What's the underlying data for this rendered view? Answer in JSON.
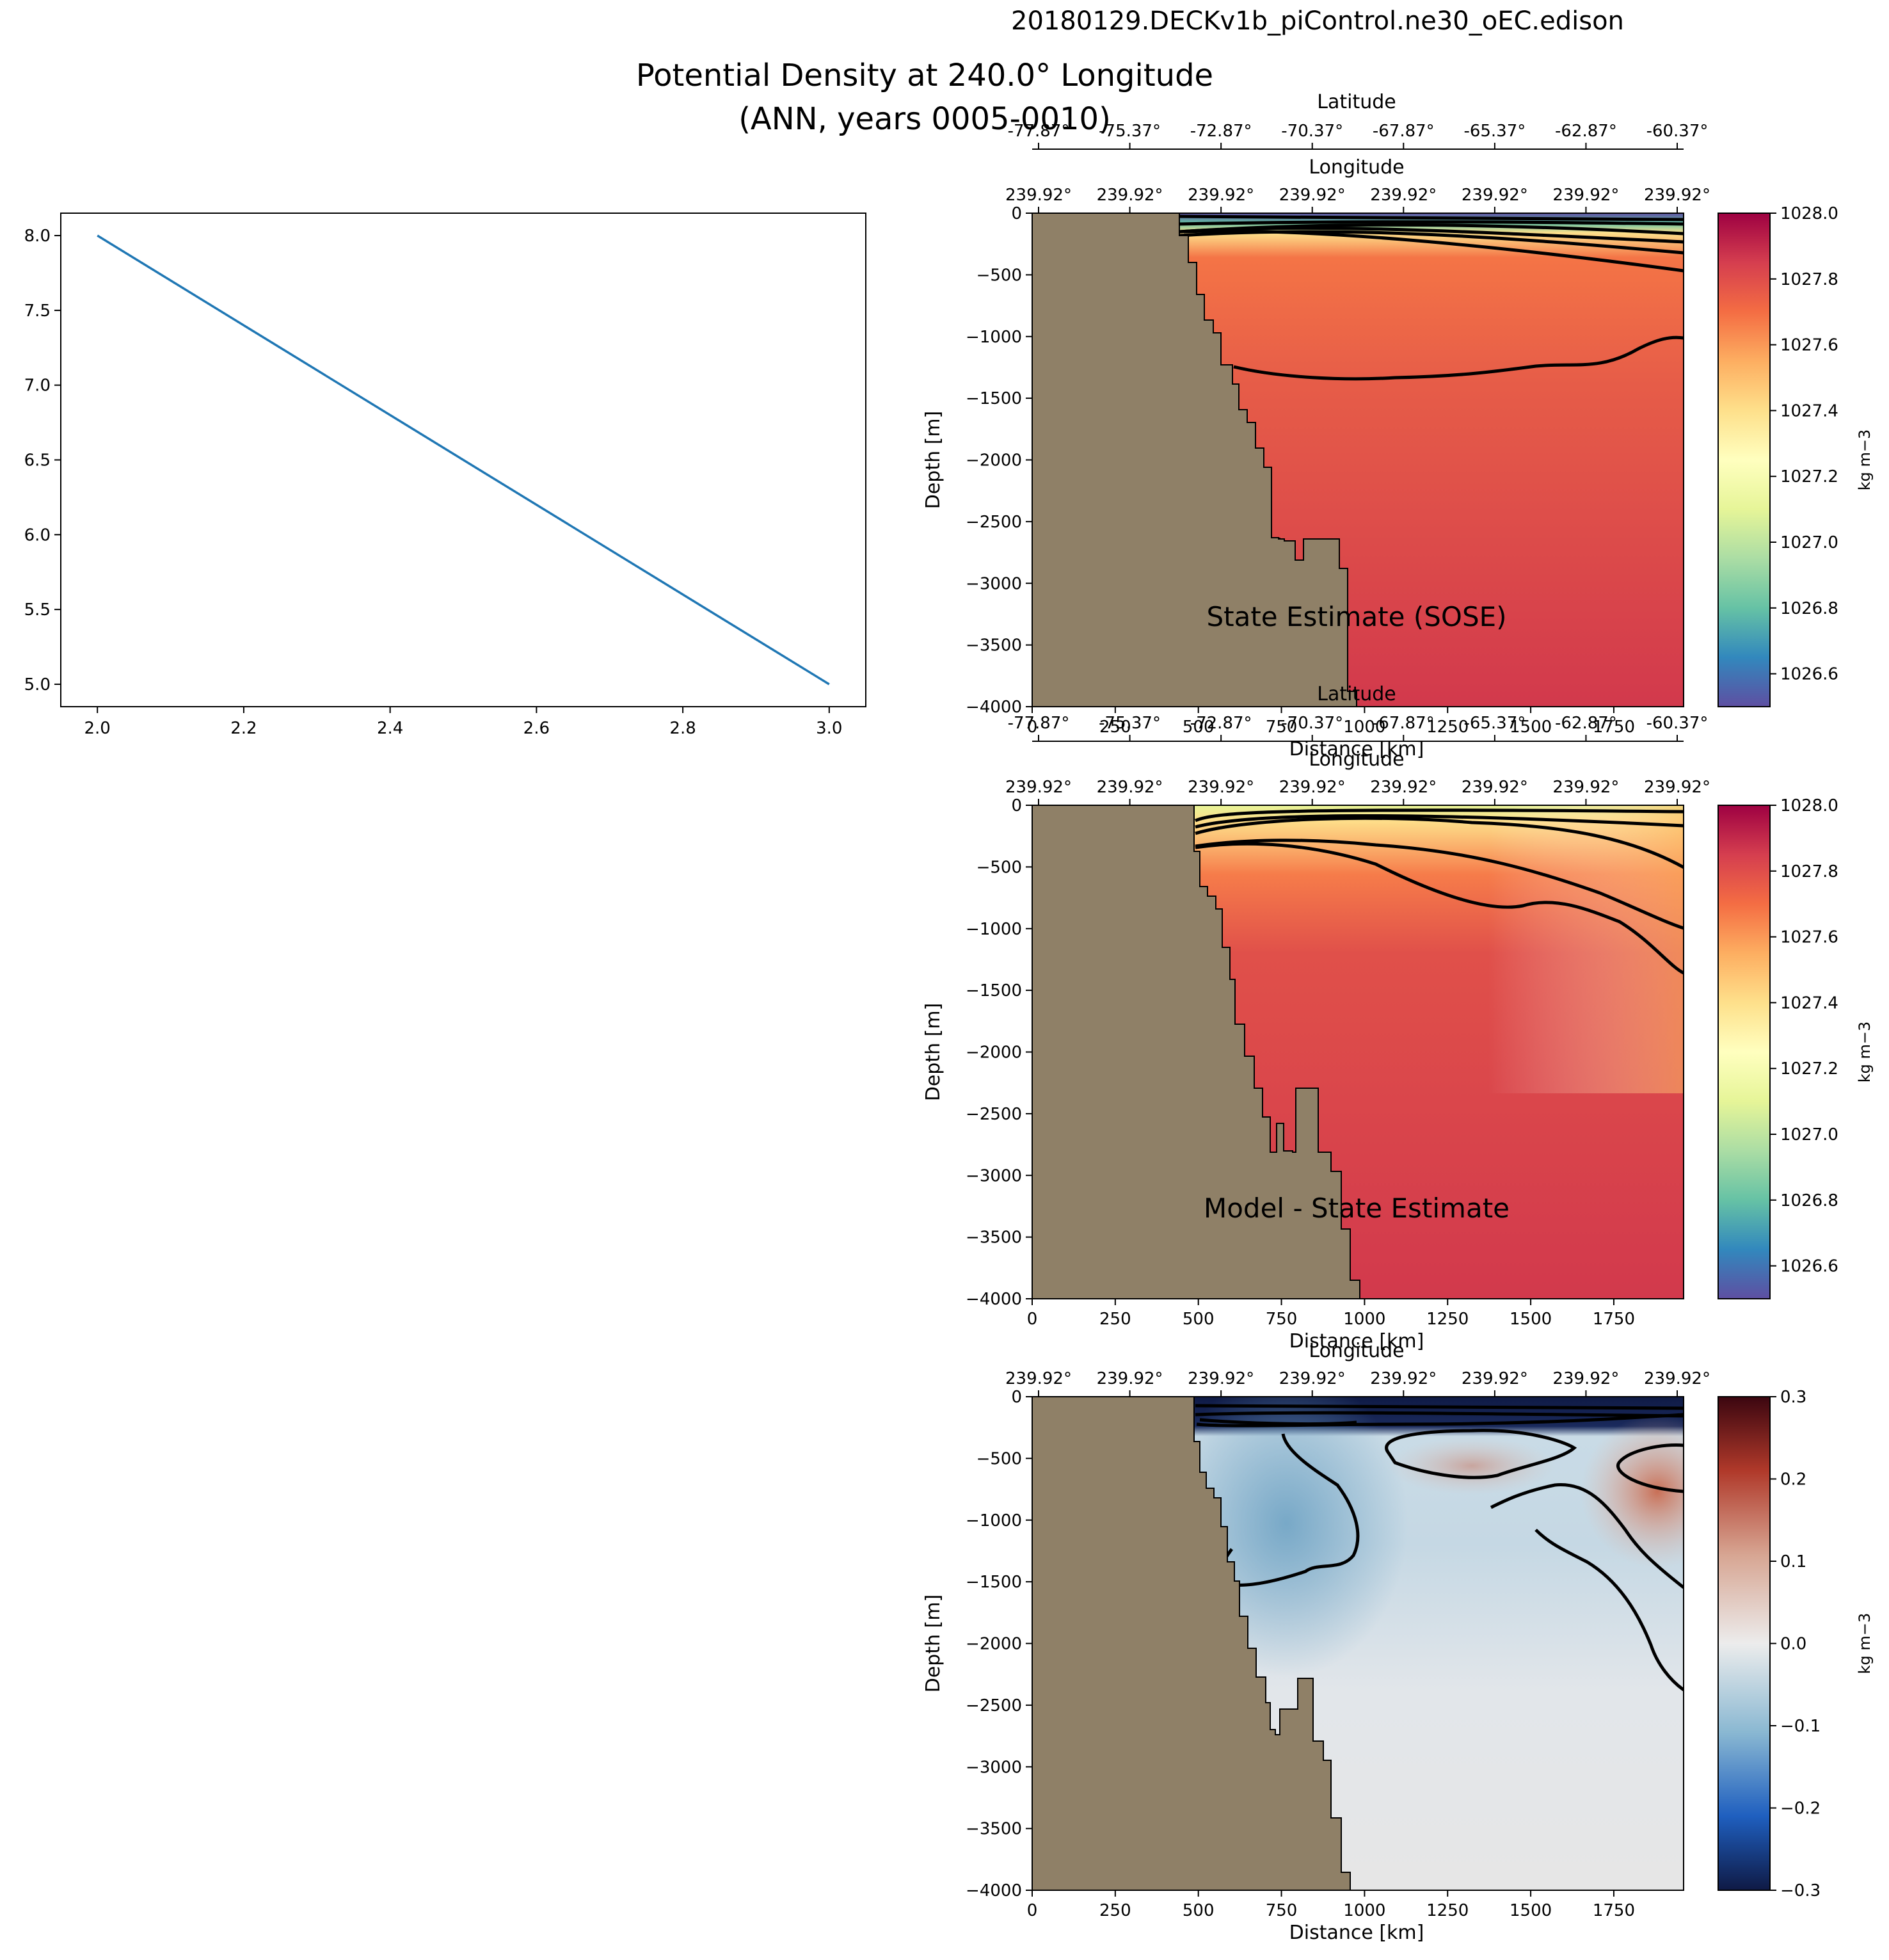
{
  "header": {
    "run_name": "20180129.DECKv1b_piControl.ne30_oEC.edison",
    "title_line1": "Potential Density at 240.0° Longitude",
    "title_line2": "(ANN, years 0005-0010)"
  },
  "chart_data": [
    {
      "type": "line",
      "name": "placeholder-line-plot",
      "x": [
        2.0,
        3.0
      ],
      "y": [
        8.0,
        5.0
      ],
      "xlim": [
        1.95,
        3.05
      ],
      "ylim": [
        4.85,
        8.15
      ],
      "xticks": [
        "2.0",
        "2.2",
        "2.4",
        "2.6",
        "2.8",
        "3.0"
      ],
      "yticks": [
        "5.0",
        "5.5",
        "6.0",
        "6.5",
        "7.0",
        "7.5",
        "8.0"
      ],
      "line_color": "#1f77b4"
    },
    {
      "type": "heatmap",
      "name": "state-estimate-section",
      "annotation": "State Estimate (SOSE)",
      "ylabel": "Depth [m]",
      "xlabel": "Distance [km]",
      "top_axis_label_1": "Latitude",
      "top_axis_label_2": "Longitude",
      "ylim": [
        -4000,
        0
      ],
      "yticks": [
        "0",
        "−500",
        "−1000",
        "−1500",
        "−2000",
        "−2500",
        "−3000",
        "−3500",
        "−4000"
      ],
      "xticks": [
        "0",
        "250",
        "500",
        "750",
        "1000",
        "1250",
        "1500",
        "1750"
      ],
      "latitude_ticks": [
        "-77.87°",
        "-75.37°",
        "-72.87°",
        "-70.37°",
        "-67.87°",
        "-65.37°",
        "-62.87°",
        "-60.37°"
      ],
      "longitude_ticks": [
        "239.92°",
        "239.92°",
        "239.92°",
        "239.92°",
        "239.92°",
        "239.92°",
        "239.92°",
        "239.92°"
      ],
      "colorbar": {
        "min": 1026.5,
        "max": 1028.0,
        "ticks": [
          "1028.0",
          "1027.8",
          "1027.6",
          "1027.4",
          "1027.2",
          "1027.0",
          "1026.8",
          "1026.6"
        ],
        "label": "kg m−3",
        "colormap": "Spectral_r"
      }
    },
    {
      "type": "heatmap",
      "name": "model-section",
      "annotation": "Model - State Estimate",
      "ylabel": "Depth [m]",
      "xlabel": "Distance [km]",
      "top_axis_label_1": "Latitude",
      "top_axis_label_2": "Longitude",
      "ylim": [
        -4000,
        0
      ],
      "yticks": [
        "0",
        "−500",
        "−1000",
        "−1500",
        "−2000",
        "−2500",
        "−3000",
        "−3500",
        "−4000"
      ],
      "xticks": [
        "0",
        "250",
        "500",
        "750",
        "1000",
        "1250",
        "1500",
        "1750"
      ],
      "latitude_ticks": [
        "-77.87°",
        "-75.37°",
        "-72.87°",
        "-70.37°",
        "-67.87°",
        "-65.37°",
        "-62.87°",
        "-60.37°"
      ],
      "longitude_ticks": [
        "239.92°",
        "239.92°",
        "239.92°",
        "239.92°",
        "239.92°",
        "239.92°",
        "239.92°",
        "239.92°"
      ],
      "colorbar": {
        "min": 1026.5,
        "max": 1028.0,
        "ticks": [
          "1028.0",
          "1027.8",
          "1027.6",
          "1027.4",
          "1027.2",
          "1027.0",
          "1026.8",
          "1026.6"
        ],
        "label": "kg m−3",
        "colormap": "Spectral_r"
      }
    },
    {
      "type": "heatmap",
      "name": "difference-section",
      "ylabel": "Depth [m]",
      "xlabel": "Distance [km]",
      "top_axis_label_1": "Longitude",
      "ylim": [
        -4000,
        0
      ],
      "yticks": [
        "0",
        "−500",
        "−1000",
        "−1500",
        "−2000",
        "−2500",
        "−3000",
        "−3500",
        "−4000"
      ],
      "xticks": [
        "0",
        "250",
        "500",
        "750",
        "1000",
        "1250",
        "1500",
        "1750"
      ],
      "longitude_ticks": [
        "239.92°",
        "239.92°",
        "239.92°",
        "239.92°",
        "239.92°",
        "239.92°",
        "239.92°",
        "239.92°"
      ],
      "colorbar": {
        "min": -0.3,
        "max": 0.3,
        "ticks": [
          "0.3",
          "0.2",
          "0.1",
          "0.0",
          "−0.1",
          "−0.2",
          "−0.3"
        ],
        "label": "kg m−3",
        "colormap": "RdBu_r"
      }
    }
  ],
  "colors": {
    "land": "#8f8067",
    "line": "#1f77b4"
  }
}
